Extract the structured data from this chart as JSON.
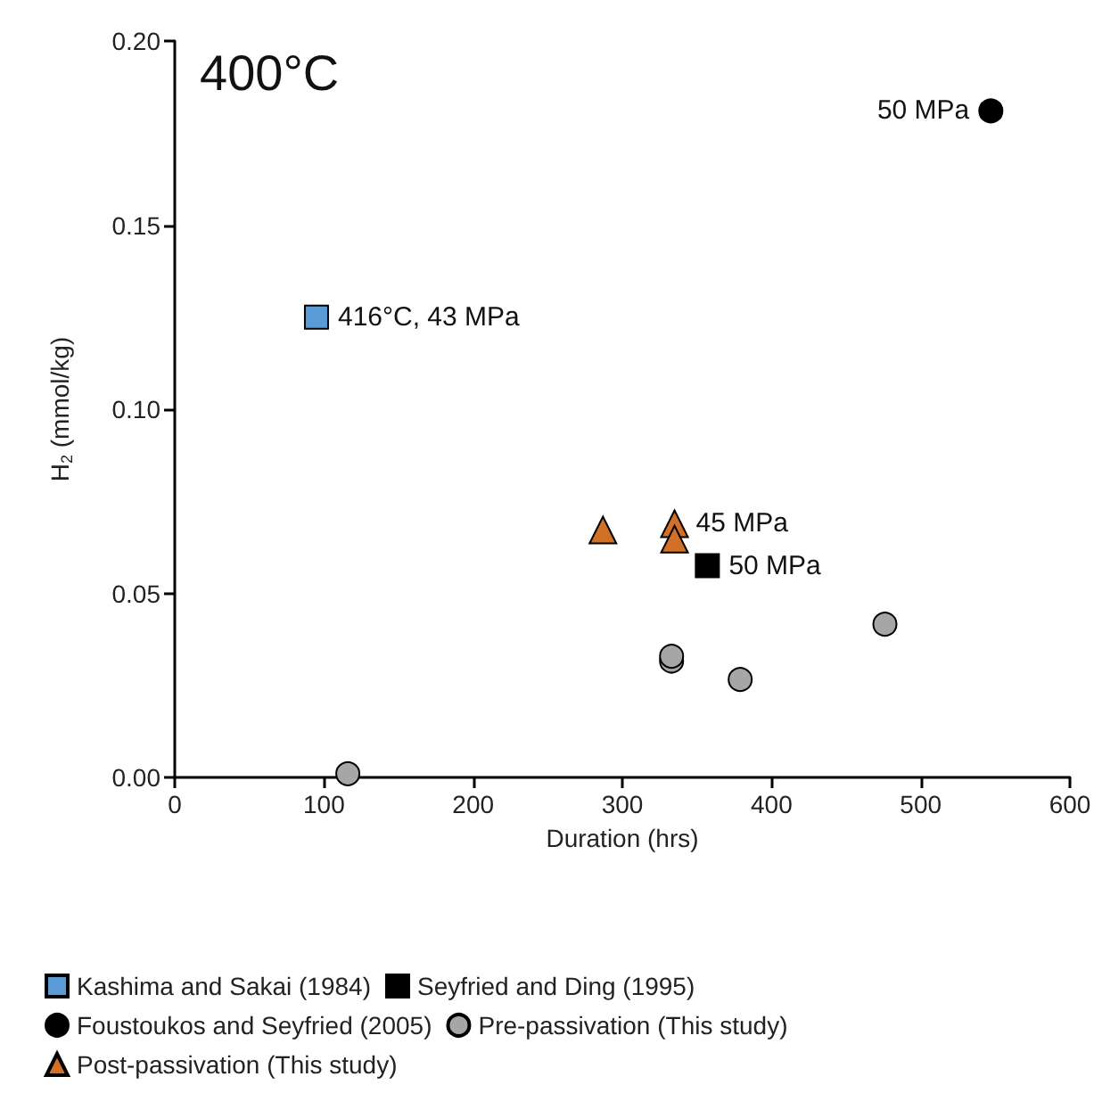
{
  "chart_data": {
    "type": "scatter",
    "xlabel": "Duration (hrs)",
    "ylabel": "H$_{2}$ (mmol/kg)",
    "xlim": [
      0,
      600
    ],
    "xticks": [
      0,
      100,
      200,
      300,
      400,
      500,
      600
    ],
    "ylim": [
      0,
      0.2
    ],
    "yticks": [
      {
        "value": 0,
        "label": "0.00"
      },
      {
        "value": 0.05,
        "label": "0.05"
      },
      {
        "value": 0.1,
        "label": "0.10"
      },
      {
        "value": 0.15,
        "label": "0.15"
      },
      {
        "value": 0.2,
        "label": "0.20"
      }
    ],
    "grid": false,
    "legend": "bottom",
    "series": [
      {
        "name": "Kashima and Sakai (1984)",
        "color": "#5b9bd5",
        "marker": "square",
        "x": [
          95
        ],
        "values": [
          0.125
        ]
      },
      {
        "name": "Seyfried and Ding (1995)",
        "color": "#000000",
        "marker": "square",
        "x": [
          357
        ],
        "values": [
          0.0575
        ]
      },
      {
        "name": "Foustoukos and Seyfried (2005)",
        "color": "#000000",
        "marker": "circle",
        "x": [
          547
        ],
        "values": [
          0.181
        ]
      },
      {
        "name": "Pre-passivation (This study)",
        "color": "#a6a6a6",
        "marker": "circle",
        "x": [
          116,
          333,
          333,
          379,
          476
        ],
        "values": [
          0.001,
          0.0316,
          0.0329,
          0.0266,
          0.0416
        ]
      },
      {
        "name": "Post-passivation (This study)",
        "color": "#d07127",
        "marker": "triangle",
        "x": [
          287,
          335,
          335
        ],
        "values": [
          0.0672,
          0.0689,
          0.0647
        ]
      }
    ],
    "annotations": [
      "400°C",
      {
        "text": "50 MPa",
        "x": 547,
        "y": 0.181
      },
      {
        "text": "416°C, 43 MPa",
        "x": 95,
        "y": 0.125
      },
      {
        "text": "45 MPa",
        "x": 335,
        "y": 0.0689
      },
      {
        "text": "50 MPa",
        "x": 357,
        "y": 0.0575
      }
    ]
  }
}
